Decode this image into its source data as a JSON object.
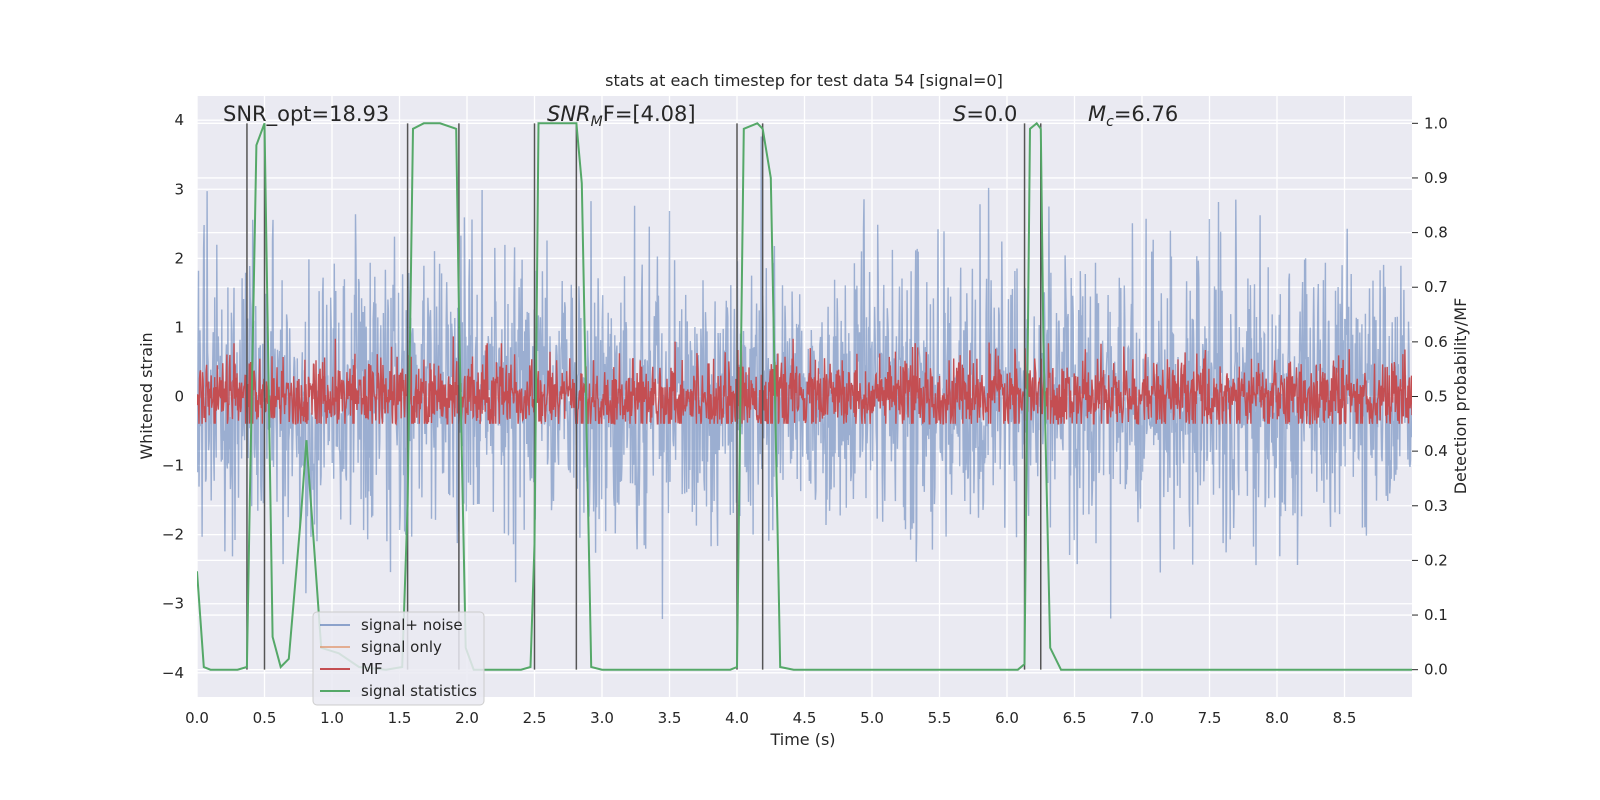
{
  "chart_data": {
    "type": "line",
    "title": "stats at each timestep for test data 54 [signal=0]",
    "xlabel": "Time (s)",
    "ylabel": "Whitened strain",
    "y2label": "Detection probability/MF",
    "xlim": [
      0.0,
      9.0
    ],
    "ylim": [
      -4.35,
      4.35
    ],
    "y2lim": [
      -0.05,
      1.05
    ],
    "xticks": [
      "0.0",
      "0.5",
      "1.0",
      "1.5",
      "2.0",
      "2.5",
      "3.0",
      "3.5",
      "4.0",
      "4.5",
      "5.0",
      "5.5",
      "6.0",
      "6.5",
      "7.0",
      "7.5",
      "8.0",
      "8.5"
    ],
    "yticks": [
      "−4",
      "−3",
      "−2",
      "−1",
      "0",
      "1",
      "2",
      "3",
      "4"
    ],
    "y2ticks": [
      "0.0",
      "0.1",
      "0.2",
      "0.3",
      "0.4",
      "0.5",
      "0.6",
      "0.7",
      "0.8",
      "0.9",
      "1.0"
    ],
    "grid": true,
    "legend_placement": "lower-left",
    "annotations": {
      "snr_opt": "SNR_opt=18.93",
      "snr_mf_prefix": "SNR",
      "snr_mf_sub": "M",
      "snr_mf_suffix": "F=[4.08]",
      "s_sym": "S",
      "s_val": "=0.0",
      "mc_sym": "M",
      "mc_sub": "c",
      "mc_val": "=6.76"
    },
    "vertical_lines_x": [
      0.37,
      0.5,
      1.56,
      1.94,
      2.5,
      2.81,
      4.0,
      4.19,
      6.13,
      6.25
    ],
    "series": [
      {
        "name": "signal+ noise",
        "color": "#4c72b0",
        "description_axis": "left",
        "noise_sigma": 1.0
      },
      {
        "name": "signal only",
        "color": "#dd8452",
        "axis": "left"
      },
      {
        "name": "MF",
        "color": "#c44e52",
        "axis": "right",
        "baseline": 0.5
      },
      {
        "name": "signal statistics",
        "color": "#55a868",
        "axis": "right",
        "x": [
          0.0,
          0.05,
          0.1,
          0.3,
          0.37,
          0.39,
          0.44,
          0.5,
          0.56,
          0.62,
          0.68,
          0.77,
          0.81,
          0.86,
          0.92,
          1.05,
          1.2,
          1.4,
          1.52,
          1.56,
          1.6,
          1.68,
          1.8,
          1.92,
          1.94,
          1.99,
          2.05,
          2.4,
          2.47,
          2.5,
          2.53,
          2.57,
          2.81,
          2.85,
          2.92,
          3.0,
          3.95,
          4.0,
          4.05,
          4.15,
          4.19,
          4.25,
          4.32,
          4.42,
          6.08,
          6.13,
          6.17,
          6.22,
          6.25,
          6.27,
          6.32,
          6.4,
          9.0
        ],
        "values": [
          0.18,
          0.005,
          0.0,
          0.0,
          0.005,
          0.3,
          0.96,
          1.0,
          0.06,
          0.005,
          0.02,
          0.28,
          0.42,
          0.25,
          0.04,
          0.03,
          0.005,
          0.0,
          0.005,
          0.3,
          0.99,
          1.0,
          1.0,
          0.99,
          0.66,
          0.04,
          0.0,
          0.0,
          0.005,
          0.23,
          1.0,
          1.0,
          1.0,
          0.89,
          0.005,
          0.0,
          0.0,
          0.005,
          0.99,
          1.0,
          0.99,
          0.9,
          0.005,
          0.0,
          0.0,
          0.01,
          0.99,
          1.0,
          0.99,
          0.6,
          0.04,
          0.0,
          0.0
        ]
      }
    ]
  }
}
